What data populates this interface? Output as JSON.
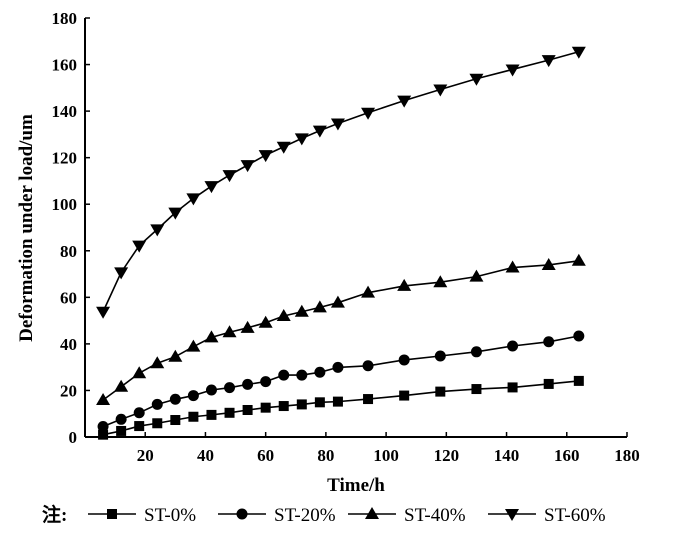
{
  "chart_data": {
    "type": "line",
    "title": "",
    "xlabel": "Time/h",
    "ylabel": "Deformation under load/um",
    "xlim": [
      0,
      180
    ],
    "ylim": [
      0,
      180
    ],
    "xticks": [
      20,
      40,
      60,
      80,
      100,
      120,
      140,
      160,
      180
    ],
    "yticks": [
      0,
      20,
      40,
      60,
      80,
      100,
      120,
      140,
      160,
      180
    ],
    "grid": false,
    "legend_position": "bottom",
    "legend_prefix": "注:",
    "x": [
      6,
      12,
      18,
      24,
      30,
      36,
      42,
      48,
      54,
      60,
      66,
      72,
      78,
      84,
      94,
      106,
      118,
      130,
      142,
      154,
      164
    ],
    "series": [
      {
        "name": "ST-0%",
        "marker": "square",
        "values": [
          1,
          2.6,
          4.7,
          5.9,
          7.3,
          8.7,
          9.5,
          10.4,
          11.6,
          12.6,
          13.3,
          14,
          14.9,
          15.2,
          16.3,
          17.8,
          19.5,
          20.6,
          21.3,
          22.8,
          24.1
        ]
      },
      {
        "name": "ST-20%",
        "marker": "circle",
        "values": [
          4.5,
          7.6,
          10.4,
          14,
          16.2,
          17.8,
          20.2,
          21.2,
          22.6,
          23.8,
          26.6,
          26.6,
          27.8,
          29.9,
          30.6,
          33.1,
          34.8,
          36.6,
          39.1,
          40.9,
          43.4
        ]
      },
      {
        "name": "ST-40%",
        "marker": "triangle-up",
        "values": [
          15.9,
          21.6,
          27.4,
          31.7,
          34.5,
          38.8,
          42.8,
          45,
          46.9,
          49.1,
          52,
          53.8,
          55.7,
          57.7,
          62,
          64.9,
          66.5,
          68.9,
          72.8,
          73.9,
          75.7
        ]
      },
      {
        "name": "ST-60%",
        "marker": "triangle-down",
        "values": [
          53.8,
          70.7,
          82.2,
          89.2,
          96.4,
          102.5,
          107.8,
          112.5,
          116.8,
          121.1,
          124.7,
          128.3,
          131.6,
          134.7,
          139.3,
          144.5,
          149.3,
          153.9,
          157.9,
          161.9,
          165.5
        ]
      }
    ]
  }
}
